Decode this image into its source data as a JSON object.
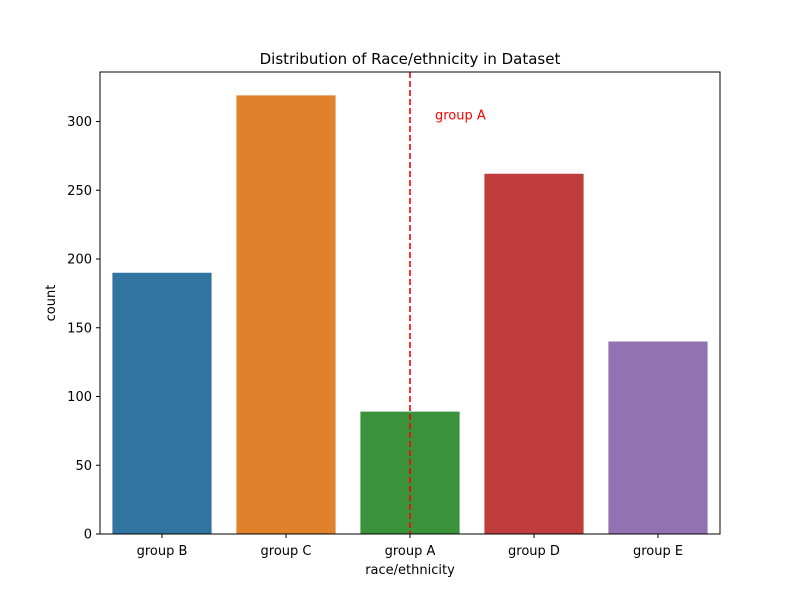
{
  "chart_data": {
    "type": "bar",
    "title": "Distribution of Race/ethnicity in Dataset",
    "xlabel": "race/ethnicity",
    "ylabel": "count",
    "categories": [
      "group B",
      "group C",
      "group A",
      "group D",
      "group E"
    ],
    "values": [
      190,
      319,
      89,
      262,
      140
    ],
    "colors": [
      "#3274a1",
      "#e1812c",
      "#3a923a",
      "#c03d3e",
      "#9372b2"
    ],
    "ylim": [
      0,
      336
    ],
    "yticks": [
      0,
      50,
      100,
      150,
      200,
      250,
      300
    ],
    "grid": false,
    "annotations": [
      {
        "type": "vline",
        "category": "group A",
        "color": "#ff0000",
        "style": "dashed",
        "label": "group A"
      }
    ]
  }
}
